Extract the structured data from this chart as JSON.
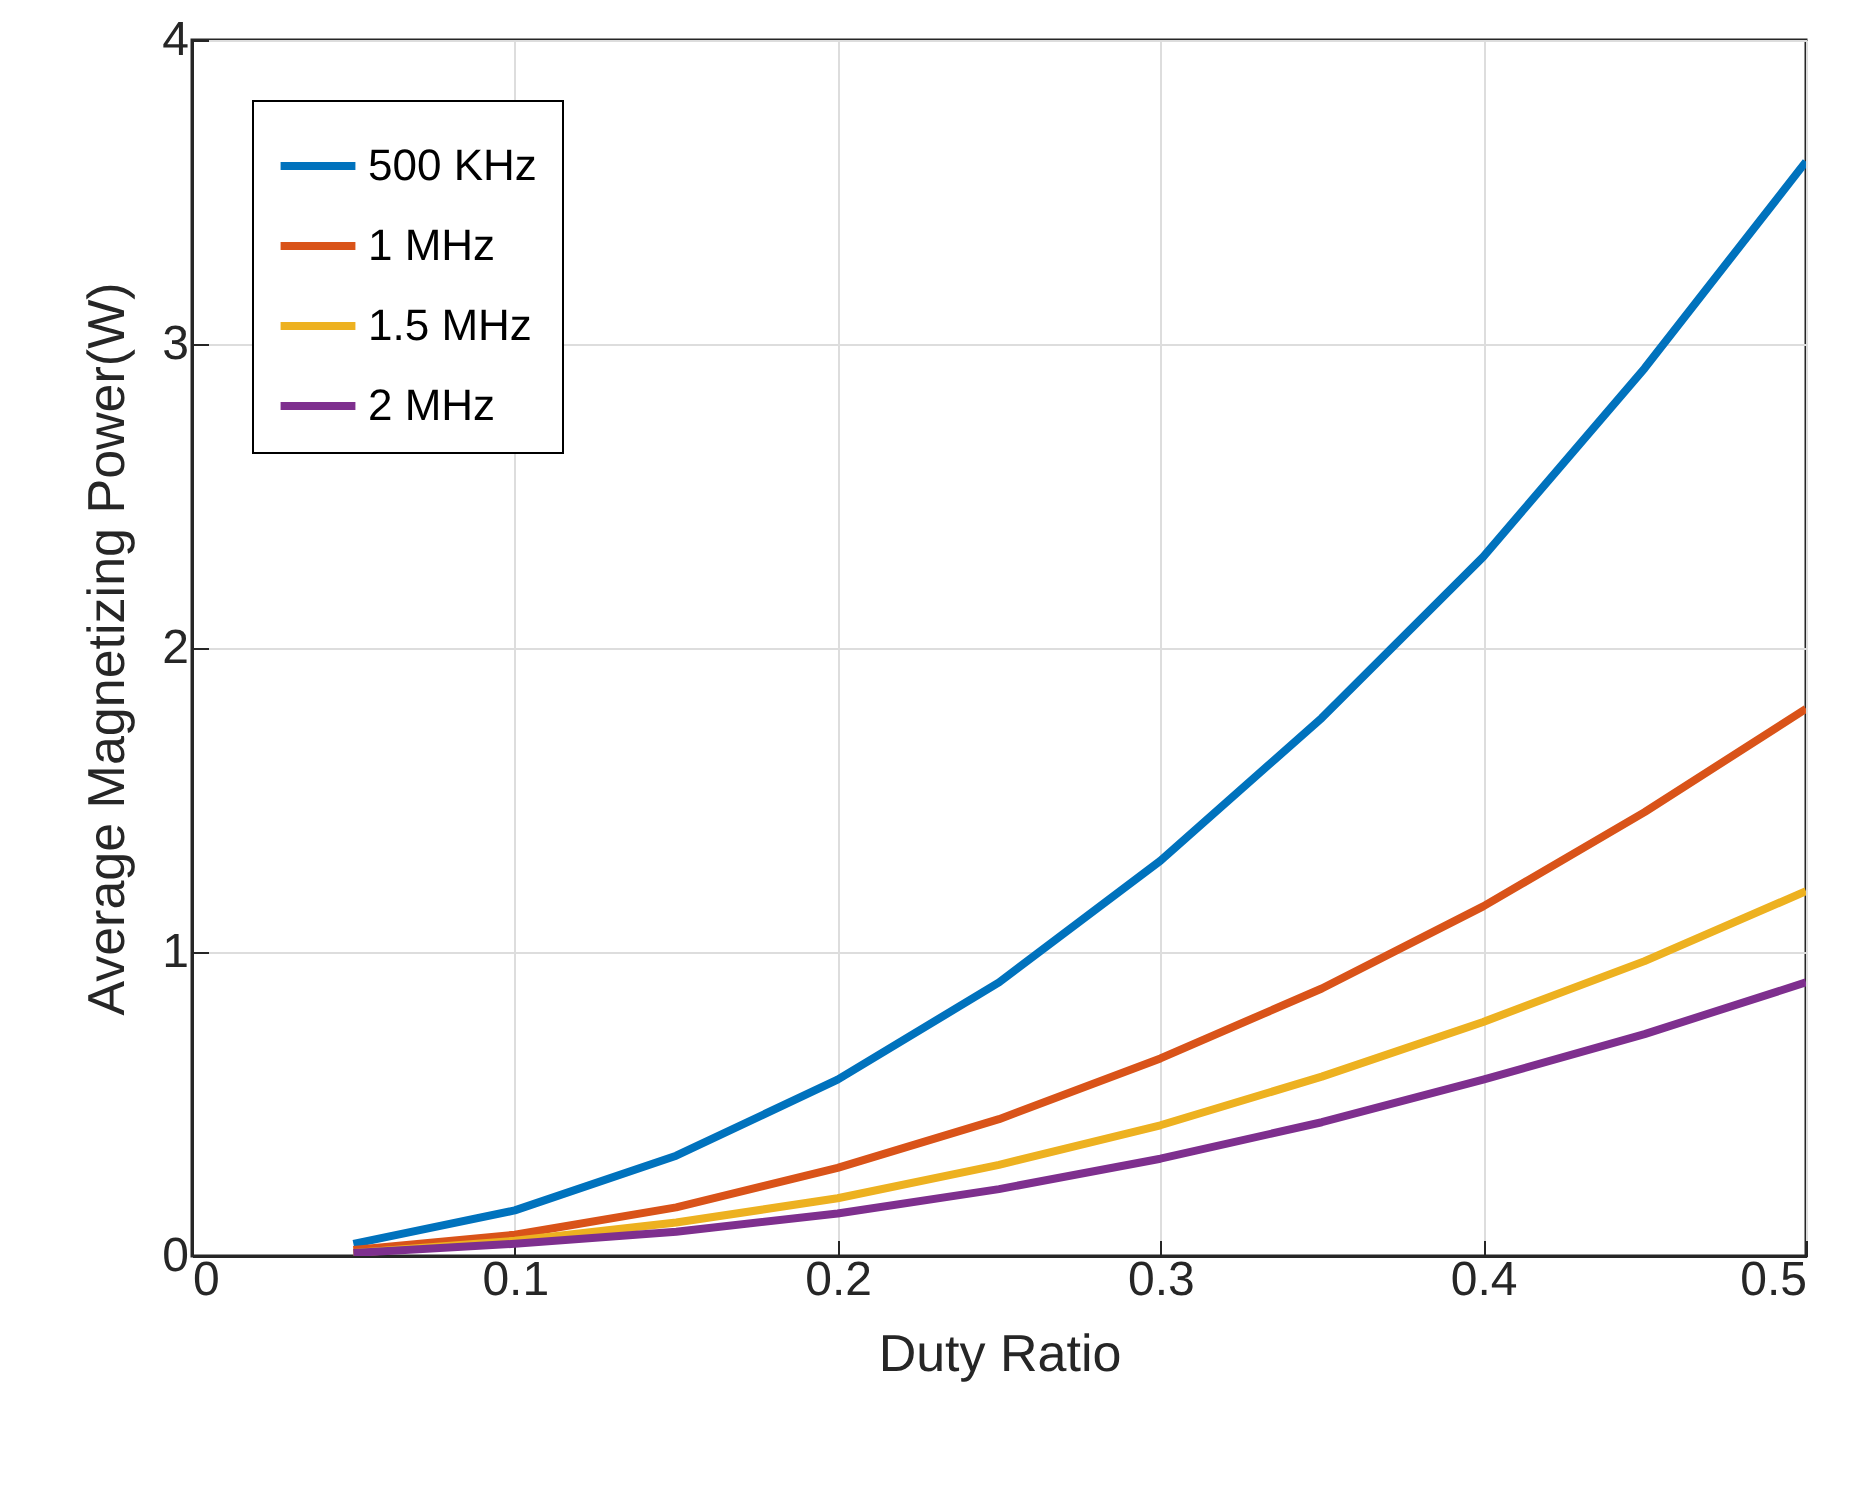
{
  "chart_data": {
    "type": "line",
    "xlabel": "Duty Ratio",
    "ylabel": "Average Magnetizing Power(W)",
    "x": [
      0.05,
      0.1,
      0.15,
      0.2,
      0.25,
      0.3,
      0.35,
      0.4,
      0.45,
      0.5
    ],
    "series": [
      {
        "name": "500 KHz",
        "color": "#0072bd",
        "values": [
          0.04,
          0.15,
          0.33,
          0.58,
          0.9,
          1.3,
          1.77,
          2.3,
          2.92,
          3.6
        ]
      },
      {
        "name": "1 MHz",
        "color": "#d95319",
        "values": [
          0.02,
          0.07,
          0.16,
          0.29,
          0.45,
          0.65,
          0.88,
          1.15,
          1.46,
          1.8
        ]
      },
      {
        "name": "1.5 MHz",
        "color": "#edb120",
        "values": [
          0.01,
          0.05,
          0.11,
          0.19,
          0.3,
          0.43,
          0.59,
          0.77,
          0.97,
          1.2
        ]
      },
      {
        "name": "2 MHz",
        "color": "#7e2f8e",
        "values": [
          0.01,
          0.04,
          0.08,
          0.14,
          0.22,
          0.32,
          0.44,
          0.58,
          0.73,
          0.9
        ]
      }
    ],
    "xlim": [
      0,
      0.5
    ],
    "xticks": [
      0,
      0.1,
      0.2,
      0.3,
      0.4,
      0.5
    ],
    "ylim": [
      0,
      4
    ],
    "yticks": [
      0,
      1,
      2,
      3,
      4
    ],
    "grid": true,
    "legend": "top left",
    "marker": "none",
    "line_style": "solid"
  }
}
